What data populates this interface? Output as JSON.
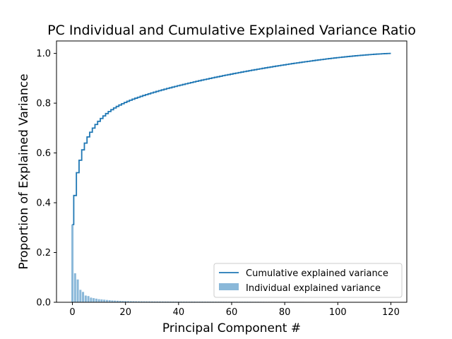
{
  "chart_data": {
    "type": "bar",
    "title": "PC Individual and Cumulative Explained Variance Ratio",
    "xlabel": "Principal Component #",
    "ylabel": "Proportion of Explained Variance",
    "xlim": [
      -6,
      126
    ],
    "ylim": [
      0,
      1.05
    ],
    "xticks": [
      0,
      20,
      40,
      60,
      80,
      100,
      120
    ],
    "yticks": [
      0.0,
      0.2,
      0.4,
      0.6,
      0.8,
      1.0
    ],
    "grid": false,
    "legend_placement": "lower-right",
    "n_components": 121,
    "series": [
      {
        "name": "Individual explained variance",
        "kind": "bar",
        "color": "#8ab8d9",
        "values": [
          0.3,
          0.112,
          0.088,
          0.048,
          0.04,
          0.026,
          0.024,
          0.018,
          0.016,
          0.014,
          0.012,
          0.011,
          0.01,
          0.009,
          0.008,
          0.007,
          0.0065,
          0.006,
          0.0055,
          0.005,
          0.0048,
          0.0045,
          0.0042,
          0.004,
          0.0038,
          0.0036,
          0.0035,
          0.0034,
          0.0033,
          0.0032,
          0.0031,
          0.003,
          0.003,
          0.0029,
          0.0029,
          0.0028,
          0.0028,
          0.0027,
          0.0027,
          0.0026,
          0.0026,
          0.0025,
          0.0025,
          0.0025,
          0.0024,
          0.0024,
          0.0024,
          0.0023,
          0.0023,
          0.0023,
          0.0022,
          0.0022,
          0.0022,
          0.0022,
          0.0021,
          0.0021,
          0.0021,
          0.0021,
          0.002,
          0.002,
          0.002,
          0.002,
          0.002,
          0.0019,
          0.0019,
          0.0019,
          0.0019,
          0.0019,
          0.0018,
          0.0018,
          0.0018,
          0.0018,
          0.0018,
          0.0017,
          0.0017,
          0.0017,
          0.0017,
          0.0017,
          0.0016,
          0.0016,
          0.0016,
          0.0016,
          0.0016,
          0.0015,
          0.0015,
          0.0015,
          0.0015,
          0.0015,
          0.0014,
          0.0014,
          0.0014,
          0.0014,
          0.0014,
          0.0013,
          0.0013,
          0.0013,
          0.0013,
          0.0012,
          0.0012,
          0.0012,
          0.0012,
          0.0011,
          0.0011,
          0.0011,
          0.001,
          0.001,
          0.001,
          0.001,
          0.0009,
          0.0009,
          0.0009,
          0.0008,
          0.0008,
          0.0008,
          0.0007,
          0.0007,
          0.0006,
          0.0006,
          0.0005,
          0.0005,
          0.0004
        ]
      },
      {
        "name": "Cumulative explained variance",
        "kind": "step",
        "color": "#1f77b4"
      }
    ]
  }
}
